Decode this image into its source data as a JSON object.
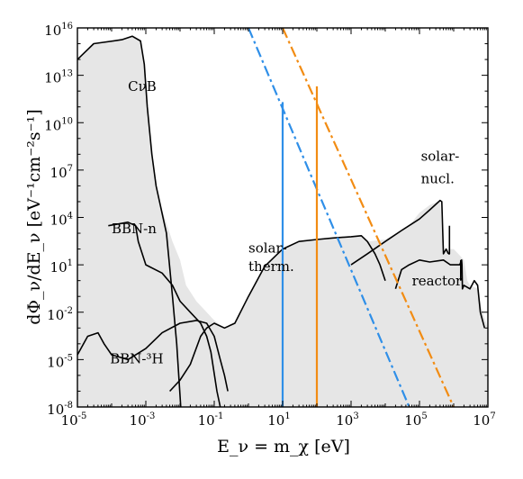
{
  "chart_data": {
    "type": "line",
    "xlabel": "E_ν = m_χ  [eV]",
    "ylabel": "dΦ_ν/dE_ν  [eV⁻¹cm⁻²s⁻¹]",
    "x_scale": "log",
    "y_scale": "log",
    "xlim": [
      1e-05,
      10000000.0
    ],
    "ylim": [
      1e-08,
      1e+16
    ],
    "x_ticks": [
      {
        "exp": "-5",
        "value": 1e-05
      },
      {
        "exp": "-3",
        "value": 0.001
      },
      {
        "exp": "-1",
        "value": 0.1
      },
      {
        "exp": "1",
        "value": 10
      },
      {
        "exp": "3",
        "value": 1000.0
      },
      {
        "exp": "5",
        "value": 100000.0
      },
      {
        "exp": "7",
        "value": 10000000.0
      }
    ],
    "y_ticks": [
      {
        "exp": "-8",
        "value": 1e-08
      },
      {
        "exp": "-5",
        "value": 1e-05
      },
      {
        "exp": "-2",
        "value": 0.01
      },
      {
        "exp": "1",
        "value": 10
      },
      {
        "exp": "4",
        "value": 10000.0
      },
      {
        "exp": "7",
        "value": 10000000.0
      },
      {
        "exp": "10",
        "value": 10000000000.0
      },
      {
        "exp": "13",
        "value": 10000000000000.0
      },
      {
        "exp": "16",
        "value": 1e+16
      }
    ],
    "tick_base": "10",
    "colors": {
      "envelope_fill": "#e6e6e6",
      "curve": "#000000",
      "blue": "#2f8fe8",
      "orange": "#f28c13"
    },
    "annotations": [
      {
        "text": "CνB",
        "x": 0.0003,
        "y": 1000000000000.0
      },
      {
        "text": "BBN-n",
        "x": 0.0001,
        "y": 1000.0
      },
      {
        "text": "BBN-³H",
        "x": 9e-05,
        "y": 6e-06
      },
      {
        "text": "solar-",
        "x": 1.0,
        "y": 60
      },
      {
        "text": "therm.",
        "x": 1.0,
        "y": 4
      },
      {
        "text": "solar-",
        "x": 110000,
        "y": 40000000.0
      },
      {
        "text": "nucl.",
        "x": 110000,
        "y": 1500000.0
      },
      {
        "text": "reactor",
        "x": 60000,
        "y": 0.5
      }
    ],
    "envelope": [
      [
        1e-05,
        1e-08
      ],
      [
        1e-05,
        100000000000000.0
      ],
      [
        3e-05,
        1000000000000000.0
      ],
      [
        0.0002,
        1800000000000000.0
      ],
      [
        0.0004,
        3000000000000000.0
      ],
      [
        0.0007,
        1500000000000000.0
      ],
      [
        0.0009,
        50000000000000.0
      ],
      [
        0.0011,
        100000000000.0
      ],
      [
        0.0015,
        100000000.0
      ],
      [
        0.002,
        1000000.0
      ],
      [
        0.003,
        30000.0
      ],
      [
        0.006,
        300
      ],
      [
        0.01,
        20
      ],
      [
        0.015,
        0.5
      ],
      [
        0.03,
        0.05
      ],
      [
        0.06,
        0.01
      ],
      [
        0.1,
        0.003
      ],
      [
        0.2,
        0.001
      ],
      [
        0.4,
        0.002
      ],
      [
        1,
        0.1
      ],
      [
        3,
        8
      ],
      [
        10,
        100
      ],
      [
        30,
        300
      ],
      [
        100,
        400
      ],
      [
        300,
        500
      ],
      [
        1000,
        600
      ],
      [
        2000,
        700
      ],
      [
        3000,
        300
      ],
      [
        10000,
        400
      ],
      [
        50000,
        3000
      ],
      [
        100000,
        20000.0
      ],
      [
        200000,
        60000.0
      ],
      [
        400000,
        120000.0
      ],
      [
        500000,
        50
      ],
      [
        700000,
        100
      ],
      [
        1000000,
        100
      ],
      [
        1500000,
        40
      ],
      [
        2000000,
        20
      ],
      [
        2500000,
        1
      ],
      [
        3000000,
        0.5
      ],
      [
        5000000,
        0.3
      ],
      [
        7000000,
        0.01
      ],
      [
        10000000.0,
        0.001
      ],
      [
        10000000.0,
        1e-08
      ]
    ],
    "series": [
      {
        "color": "#000000",
        "dash": "none",
        "points": [
          [
            1e-05,
            100000000000000.0
          ],
          [
            3e-05,
            1000000000000000.0
          ],
          [
            0.0002,
            1800000000000000.0
          ],
          [
            0.0004,
            3000000000000000.0
          ],
          [
            0.0007,
            1500000000000000.0
          ],
          [
            0.0009,
            50000000000000.0
          ],
          [
            0.0011,
            100000000000.0
          ],
          [
            0.0015,
            100000000.0
          ],
          [
            0.002,
            1000000.0
          ],
          [
            0.004,
            1000.0
          ],
          [
            0.006,
            0.1
          ],
          [
            0.008,
            0.0001
          ],
          [
            0.0105,
            1e-08
          ]
        ]
      },
      {
        "color": "#000000",
        "dash": "none",
        "points": [
          [
            8e-05,
            3000
          ],
          [
            0.0003,
            5000
          ],
          [
            0.0005,
            3000
          ],
          [
            0.0006,
            300
          ],
          [
            0.001,
            10
          ],
          [
            0.003,
            3
          ],
          [
            0.006,
            0.5
          ],
          [
            0.01,
            0.05
          ],
          [
            0.02,
            0.01
          ],
          [
            0.04,
            0.002
          ],
          [
            0.06,
            0.0003
          ],
          [
            0.08,
            3e-05
          ],
          [
            0.12,
            1e-07
          ],
          [
            0.15,
            1e-08
          ]
        ]
      },
      {
        "color": "#000000",
        "dash": "none",
        "points": [
          [
            1e-05,
            2e-05
          ],
          [
            2e-05,
            0.0003
          ],
          [
            4e-05,
            0.0005
          ],
          [
            6e-05,
            0.0001
          ],
          [
            0.0001,
            2e-05
          ],
          [
            0.0003,
            1e-05
          ],
          [
            0.001,
            5e-05
          ],
          [
            0.003,
            0.0005
          ],
          [
            0.01,
            0.002
          ],
          [
            0.03,
            0.003
          ],
          [
            0.06,
            0.002
          ],
          [
            0.1,
            0.0003
          ],
          [
            0.15,
            1e-05
          ],
          [
            0.2,
            1e-06
          ],
          [
            0.25,
            1e-07
          ]
        ]
      },
      {
        "color": "#000000",
        "dash": "none",
        "points": [
          [
            0.005,
            1e-07
          ],
          [
            0.01,
            5e-07
          ],
          [
            0.02,
            5e-06
          ],
          [
            0.04,
            0.0003
          ],
          [
            0.06,
            0.001
          ],
          [
            0.1,
            0.002
          ],
          [
            0.2,
            0.001
          ],
          [
            0.4,
            0.002
          ],
          [
            1,
            0.1
          ],
          [
            3,
            8
          ],
          [
            10,
            100
          ],
          [
            30,
            300
          ],
          [
            100,
            400
          ],
          [
            300,
            500
          ],
          [
            1000,
            600
          ],
          [
            2000,
            700
          ],
          [
            3000,
            300
          ],
          [
            5000,
            50
          ],
          [
            7000,
            10
          ],
          [
            10000,
            1
          ]
        ]
      },
      {
        "color": "#000000",
        "dash": "none",
        "points": [
          [
            1000,
            10
          ],
          [
            3000,
            50
          ],
          [
            10000,
            300
          ],
          [
            30000,
            1500
          ],
          [
            100000,
            8000
          ],
          [
            200000,
            30000.0
          ],
          [
            400000,
            120000.0
          ],
          [
            450000,
            100000.0
          ],
          [
            500000,
            50
          ],
          [
            600000,
            100
          ],
          [
            700000,
            50
          ]
        ]
      },
      {
        "color": "#000000",
        "dash": "none",
        "points": [
          [
            750000,
            3000
          ],
          [
            750000,
            50
          ],
          [
            700000,
            50
          ]
        ]
      },
      {
        "color": "#000000",
        "dash": "none",
        "points": [
          [
            20000,
            0.3
          ],
          [
            30000,
            5
          ],
          [
            50000,
            10
          ],
          [
            100000,
            20
          ],
          [
            200000,
            15
          ],
          [
            500000,
            20
          ],
          [
            800000,
            10
          ],
          [
            1000000,
            10
          ],
          [
            1500000,
            10
          ],
          [
            1700000,
            20
          ],
          [
            1750000,
            10
          ],
          [
            1800000,
            0.3
          ],
          [
            2000000,
            0.5
          ],
          [
            3000000,
            0.3
          ],
          [
            4000000,
            1
          ],
          [
            5000000,
            0.5
          ],
          [
            6000000,
            0.01
          ],
          [
            8000000,
            0.001
          ]
        ]
      },
      {
        "color": "#000000",
        "dash": "none",
        "points": [
          [
            1600000,
            1
          ],
          [
            1600000,
            20
          ]
        ]
      },
      {
        "color": "#2f8fe8",
        "dash": "dashdot",
        "points": [
          [
            1,
            1e+16
          ],
          [
            50000,
            1e-08
          ]
        ]
      },
      {
        "color": "#f28c13",
        "dash": "dashdot",
        "points": [
          [
            10,
            1e+16
          ],
          [
            1000000,
            1e-08
          ]
        ]
      },
      {
        "color": "#2f8fe8",
        "dash": "none",
        "points": [
          [
            10,
            200000000000.0
          ],
          [
            10,
            1e-08
          ]
        ]
      },
      {
        "color": "#f28c13",
        "dash": "none",
        "points": [
          [
            100,
            2000000000000.0
          ],
          [
            100,
            1e-08
          ]
        ]
      }
    ]
  }
}
